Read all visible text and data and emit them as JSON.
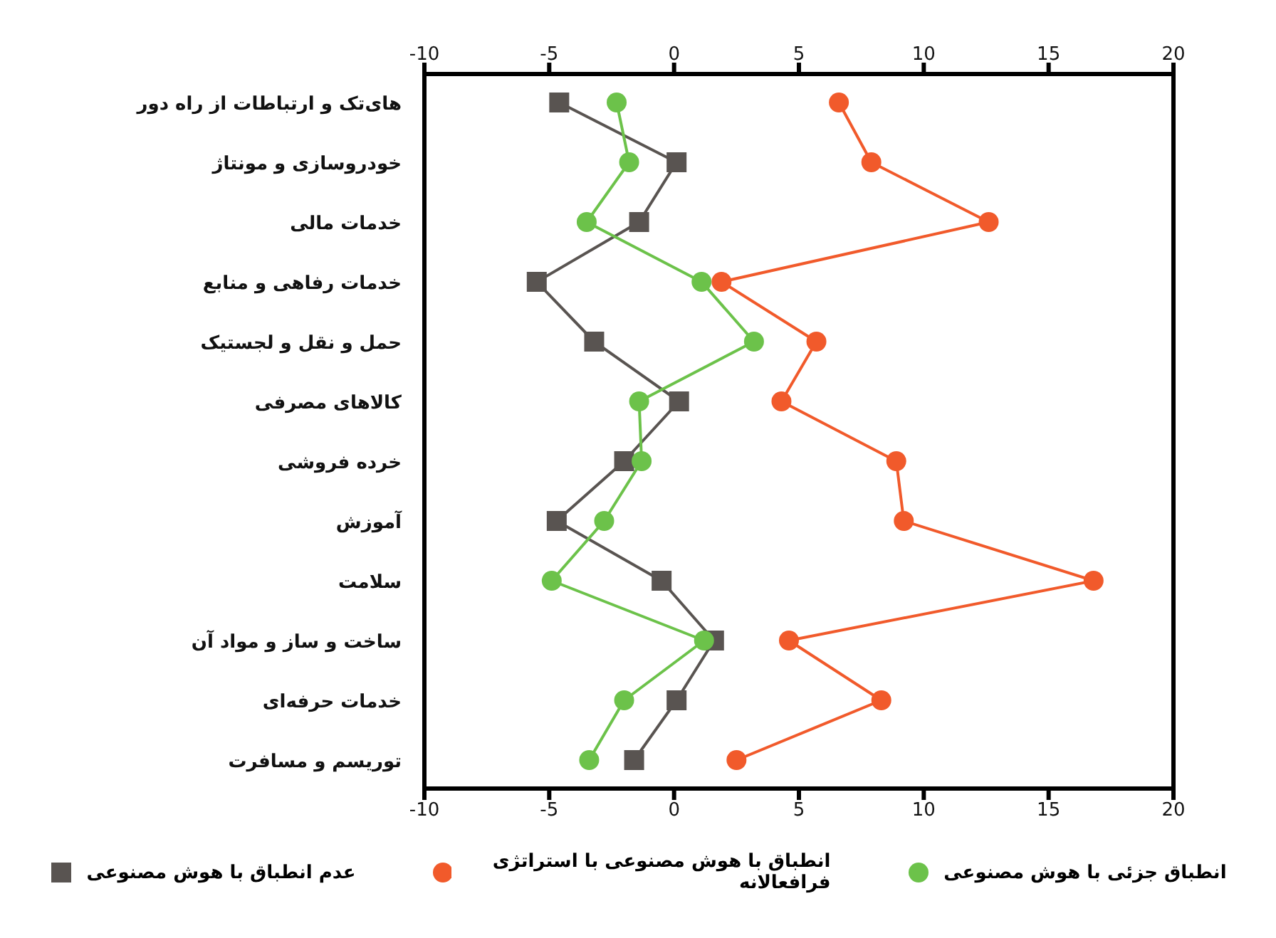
{
  "chart_data": {
    "type": "line",
    "categories": [
      "های‌تک و ارتباطات از راه دور",
      "خودروسازی و مونتاژ",
      "خدمات مالی",
      "خدمات رفاهی و منابع",
      "حمل و نقل و لجستیک",
      "کالاهای مصرفی",
      "خرده فروشی",
      "آموزش",
      "سلامت",
      "ساخت و ساز و مواد آن",
      "خدمات حرفه‌ای",
      "توریسم و مسافرت"
    ],
    "orientation": "horizontal",
    "series": [
      {
        "name": "عدم انطباق با هوش مصنوعی",
        "color": "#595451",
        "marker": "square",
        "values": [
          -4.6,
          0.1,
          -1.4,
          -5.5,
          -3.2,
          0.2,
          -2.0,
          -4.7,
          -0.5,
          1.6,
          0.1,
          -1.6
        ]
      },
      {
        "name": "انطباق با هوش مصنوعی با استراتژی فرافعالانه",
        "color": "#f15a2b",
        "marker": "circle",
        "values": [
          6.6,
          7.9,
          12.6,
          1.9,
          5.7,
          4.3,
          8.9,
          9.2,
          16.8,
          4.6,
          8.3,
          2.5
        ]
      },
      {
        "name": "انطباق جزئی با هوش مصنوعی",
        "color": "#6cc24a",
        "marker": "circle",
        "values": [
          -2.3,
          -1.8,
          -3.5,
          1.1,
          3.2,
          -1.4,
          -1.3,
          -2.8,
          -4.9,
          1.2,
          -2.0,
          -3.4
        ]
      }
    ],
    "xlim": [
      -10,
      20
    ],
    "xticks": [
      -10,
      -5,
      0,
      5,
      10,
      15,
      20
    ],
    "x2lim": [
      -10,
      20
    ],
    "x2ticks": [
      -10,
      -5,
      0,
      5,
      10,
      15,
      20
    ],
    "grid": false,
    "legend": "bottom"
  }
}
